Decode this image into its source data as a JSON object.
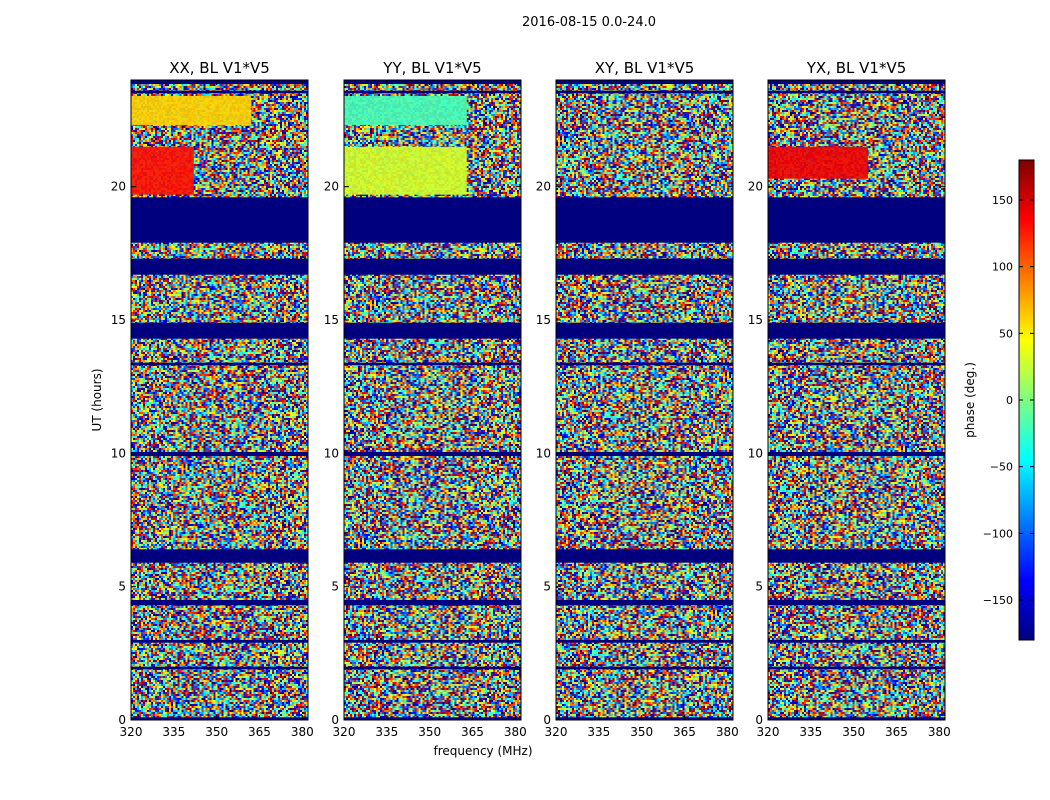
{
  "chart_data": {
    "type": "heatmap",
    "suptitle": "2016-08-15 0.0-24.0",
    "xlabel": "frequency (MHz)",
    "ylabel": "UT (hours)",
    "x_range": [
      320,
      382
    ],
    "y_range": [
      0,
      24
    ],
    "x_ticks": [
      320,
      335,
      350,
      365,
      380
    ],
    "y_ticks": [
      0,
      5,
      10,
      15,
      20
    ],
    "x_tick_labels": [
      "320",
      "335",
      "350",
      "365",
      "380"
    ],
    "y_tick_labels": [
      "0",
      "5",
      "10",
      "15",
      "20"
    ],
    "colorbar": {
      "label": "phase (deg.)",
      "range": [
        -180,
        180
      ],
      "ticks": [
        -150,
        -100,
        -50,
        0,
        50,
        100,
        150
      ],
      "tick_labels": [
        "−150",
        "−100",
        "−50",
        "0",
        "50",
        "100",
        "150"
      ],
      "colormap": [
        "#00007f",
        "#0000ff",
        "#007fff",
        "#00ffff",
        "#7fff7f",
        "#ffff00",
        "#ff7f00",
        "#ff0000",
        "#7f0000"
      ]
    },
    "panels": [
      {
        "title": "XX, BL V1*V5"
      },
      {
        "title": "YY, BL V1*V5"
      },
      {
        "title": "XY, BL V1*V5"
      },
      {
        "title": "YX, BL V1*V5"
      }
    ],
    "flagged_color": "#00007f",
    "flagged_intervals_ut": [
      [
        0.0,
        0.1
      ],
      [
        1.9,
        2.0
      ],
      [
        2.9,
        3.0
      ],
      [
        4.3,
        4.5
      ],
      [
        5.9,
        6.4
      ],
      [
        9.9,
        10.05
      ],
      [
        13.3,
        13.4
      ],
      [
        14.3,
        14.9
      ],
      [
        16.7,
        17.3
      ],
      [
        17.9,
        19.6
      ],
      [
        23.5,
        23.6
      ],
      [
        23.85,
        24.0
      ]
    ],
    "colored_band_segments": [
      {
        "panel": "XX, BL V1*V5",
        "ut_range": [
          19.7,
          21.5
        ],
        "freq_range": [
          320,
          342
        ],
        "phase_deg": 130
      },
      {
        "panel": "XX, BL V1*V5",
        "ut_range": [
          22.3,
          23.4
        ],
        "freq_range": [
          320,
          362
        ],
        "phase_deg": 60
      },
      {
        "panel": "YY, BL V1*V5",
        "ut_range": [
          19.7,
          21.5
        ],
        "freq_range": [
          320,
          363
        ],
        "phase_deg": 30
      },
      {
        "panel": "YY, BL V1*V5",
        "ut_range": [
          22.3,
          23.4
        ],
        "freq_range": [
          320,
          363
        ],
        "phase_deg": -20
      },
      {
        "panel": "YX, BL V1*V5",
        "ut_range": [
          20.3,
          21.5
        ],
        "freq_range": [
          320,
          355
        ],
        "phase_deg": 140
      }
    ]
  }
}
